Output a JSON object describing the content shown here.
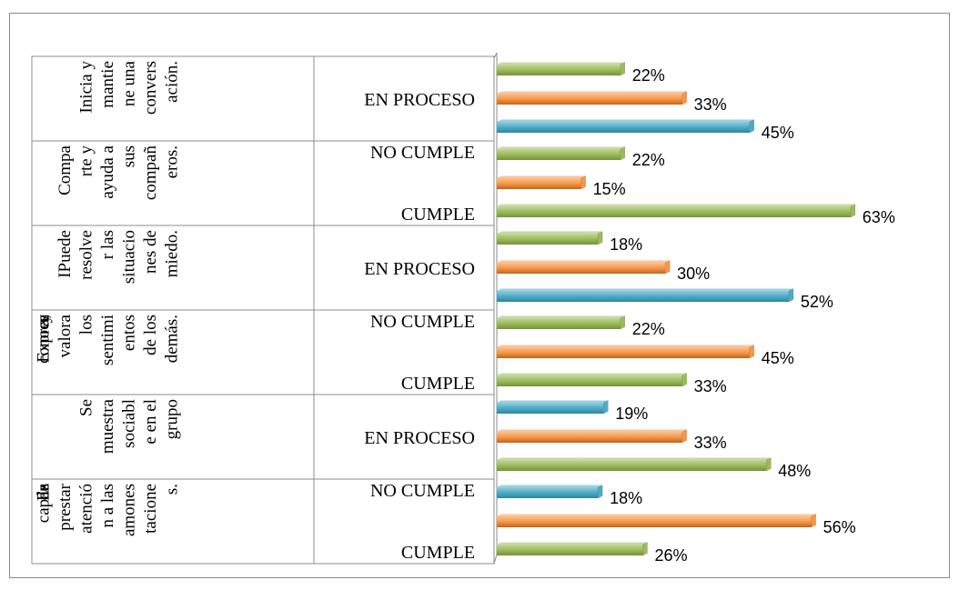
{
  "chart_data": {
    "type": "bar",
    "orientation": "horizontal",
    "xlim": [
      0,
      70
    ],
    "grid": false,
    "legend": "none",
    "colors": {
      "green": "#9bbb59",
      "orange": "#f79646",
      "blue": "#4bacc6"
    },
    "groups": [
      {
        "name": "Inicia y mantiene una conversación.",
        "label_lines": [
          "Inicia y",
          "mantie",
          "ne una",
          "convers",
          "ación."
        ],
        "status_label": "EN PROCESO",
        "bars": [
          {
            "value": 22,
            "label": "22%",
            "color": "green"
          },
          {
            "value": 33,
            "label": "33%",
            "color": "orange"
          },
          {
            "value": 45,
            "label": "45%",
            "color": "blue"
          }
        ]
      },
      {
        "name": "Comparte y ayuda a sus compañeros.",
        "label_lines": [
          "Compa",
          "rte y",
          "ayuda a",
          "sus",
          "compañ",
          "eros."
        ],
        "status_labels": [
          "NO CUMPLE",
          "CUMPLE"
        ],
        "bars": [
          {
            "value": 22,
            "label": "22%",
            "color": "green"
          },
          {
            "value": 15,
            "label": "15%",
            "color": "orange"
          },
          {
            "value": 63,
            "label": "63%",
            "color": "green"
          }
        ]
      },
      {
        "name": "IPuede resolver las situaciones de miedo.",
        "label_lines": [
          "IPuede",
          "resolve",
          "r las",
          "situacio",
          "nes de",
          "miedo."
        ],
        "status_label": "EN PROCESO",
        "bars": [
          {
            "value": 18,
            "label": "18%",
            "color": "green"
          },
          {
            "value": 30,
            "label": "30%",
            "color": "orange"
          },
          {
            "value": 52,
            "label": "52%",
            "color": "blue"
          }
        ]
      },
      {
        "name": "Expresa, conoce y valora los sentimientos de los demás.",
        "label_lines": [
          "Expres",
          "a,",
          "conoce",
          "y",
          "valora",
          "los",
          "sentimi",
          "entos",
          "de los",
          "demás."
        ],
        "status_labels": [
          "NO CUMPLE",
          "CUMPLE"
        ],
        "bars": [
          {
            "value": 22,
            "label": "22%",
            "color": "green"
          },
          {
            "value": 45,
            "label": "45%",
            "color": "orange"
          },
          {
            "value": 33,
            "label": "33%",
            "color": "green"
          }
        ]
      },
      {
        "name": "Se muestra sociable en el grupo",
        "label_lines": [
          "Se",
          "muestra",
          "sociabl",
          "e en el",
          "grupo"
        ],
        "status_label": "EN PROCESO",
        "bars": [
          {
            "value": 19,
            "label": "19%",
            "color": "blue"
          },
          {
            "value": 33,
            "label": "33%",
            "color": "orange"
          },
          {
            "value": 48,
            "label": "48%",
            "color": "green"
          }
        ]
      },
      {
        "name": "Es capaz de prestar atención a las amonestaciones.",
        "label_lines": [
          "Es",
          "capaz",
          "de",
          "prestar",
          "atenció",
          "n a las",
          "amones",
          "tacione",
          "s."
        ],
        "status_labels": [
          "NO CUMPLE",
          "CUMPLE"
        ],
        "bars": [
          {
            "value": 18,
            "label": "18%",
            "color": "blue"
          },
          {
            "value": 56,
            "label": "56%",
            "color": "orange"
          },
          {
            "value": 26,
            "label": "26%",
            "color": "green"
          }
        ]
      }
    ]
  }
}
